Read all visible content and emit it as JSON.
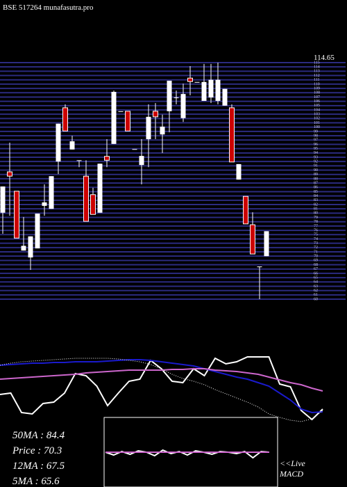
{
  "chart_data": [
    {
      "type": "candlestick",
      "title": "BSE 517264 munafasutra.pro",
      "annotation": {
        "value": 114.65,
        "label": "114.65"
      },
      "up_color": "#ffffff",
      "down_color": "#cc0000",
      "grid_color": "#2b2b80",
      "ylim": [
        60,
        115
      ],
      "yticks": [
        60,
        61,
        62,
        63,
        64,
        65,
        66,
        67,
        68,
        69,
        70,
        71,
        72,
        73,
        74,
        75,
        76,
        77,
        78,
        79,
        80,
        81,
        82,
        83,
        84,
        85,
        86,
        87,
        88,
        89,
        90,
        91,
        92,
        93,
        94,
        95,
        96,
        97,
        98,
        99,
        100,
        101,
        102,
        103,
        104,
        105,
        106,
        107,
        108,
        109,
        110,
        111,
        112,
        113,
        114,
        115
      ],
      "open": [
        80.1,
        89.6,
        85.1,
        71.3,
        69.7,
        71.8,
        81.7,
        81.0,
        92.0,
        104.5,
        94.8,
        92.3,
        88.6,
        84.3,
        80.1,
        93.2,
        96.1,
        103.7,
        103.7,
        94.9,
        91.2,
        97.2,
        103.7,
        98.3,
        103.7,
        106.9,
        102.1,
        111.4,
        110.5,
        106.1,
        106.9,
        106.1,
        105.0,
        104.5,
        87.8,
        83.9,
        77.3,
        67.6,
        70.0
      ],
      "high": [
        86.2,
        96.4,
        85.1,
        79.1,
        74.6,
        79.9,
        86.7,
        88.6,
        100.8,
        105.3,
        98.0,
        92.3,
        92.3,
        85.9,
        91.5,
        97.2,
        108.5,
        103.7,
        103.7,
        94.9,
        97.2,
        105.3,
        105.6,
        102.9,
        110.8,
        108.5,
        110.1,
        114.2,
        110.5,
        114.7,
        114.7,
        115.0,
        108.9,
        105.3,
        91.4,
        83.9,
        80.2,
        67.6,
        75.8
      ],
      "low": [
        75.2,
        79.4,
        74.2,
        71.3,
        66.8,
        71.8,
        79.4,
        81.0,
        89.1,
        99.1,
        94.8,
        90.7,
        78.1,
        79.7,
        80.1,
        90.7,
        96.1,
        103.7,
        99.1,
        94.9,
        86.7,
        90.7,
        97.2,
        94.0,
        98.8,
        105.3,
        101.2,
        107.4,
        110.5,
        106.1,
        105.6,
        105.3,
        105.0,
        91.9,
        87.8,
        77.5,
        70.5,
        60.0,
        70.0
      ],
      "close": [
        86.2,
        88.6,
        74.2,
        72.4,
        74.6,
        79.9,
        82.5,
        88.6,
        100.8,
        99.1,
        96.7,
        92.3,
        78.1,
        79.7,
        91.5,
        92.3,
        108.2,
        103.7,
        99.1,
        94.9,
        93.3,
        102.4,
        102.4,
        100.1,
        110.8,
        106.9,
        107.7,
        110.6,
        110.5,
        110.5,
        111.0,
        111.0,
        108.9,
        91.9,
        91.4,
        77.5,
        70.5,
        67.6,
        75.8
      ]
    },
    {
      "type": "line",
      "ylim": [
        0,
        100
      ],
      "stats": [
        "50MA : 84.4",
        "Price  : 70.3",
        "12MA : 67.5",
        "5MA : 65.6"
      ],
      "series": [
        {
          "color": "#ffffff",
          "style": "solid",
          "values": [
            43,
            45,
            17,
            15,
            30,
            32,
            45,
            73,
            70,
            55,
            27,
            45,
            62,
            65,
            92,
            80,
            62,
            60,
            80,
            70,
            95,
            87,
            90,
            97,
            97,
            97,
            58,
            54,
            20,
            7,
            22
          ]
        },
        {
          "color": "#1a1acc",
          "style": "solid",
          "values": [
            85,
            86,
            87,
            88,
            88,
            89,
            89,
            90,
            90,
            90,
            91,
            92,
            93,
            93,
            92,
            90,
            88,
            86,
            84,
            80,
            76,
            72,
            68,
            65,
            60,
            55,
            45,
            35,
            22,
            17,
            18
          ]
        },
        {
          "color": "#cc66cc",
          "style": "solid",
          "values": [
            65,
            66,
            67,
            68,
            69,
            70,
            71,
            72,
            74,
            75,
            76,
            77,
            78,
            78,
            78,
            78,
            79,
            79,
            80,
            80,
            78,
            77,
            76,
            74,
            72,
            68,
            64,
            60,
            57,
            52,
            48
          ]
        },
        {
          "color": "#ffffff",
          "style": "dotted",
          "values": [
            85,
            88,
            90,
            91,
            92,
            93,
            94,
            95,
            95,
            95,
            95,
            94,
            92,
            90,
            86,
            80,
            72,
            66,
            62,
            57,
            50,
            44,
            38,
            32,
            25,
            15,
            10,
            6,
            4,
            8,
            20
          ]
        }
      ]
    },
    {
      "type": "line",
      "ylim": [
        -1,
        1
      ],
      "label": "<<Live",
      "sublabel": "MACD",
      "series": [
        {
          "color": "#ffffff",
          "style": "solid",
          "values": [
            0,
            -0.08,
            0.02,
            -0.06,
            0.04,
            0,
            -0.1,
            0.06,
            -0.04,
            0.02,
            -0.08,
            0.04,
            0,
            -0.06,
            0.02,
            0,
            -0.04,
            0.02,
            -0.16,
            0.02,
            0
          ]
        },
        {
          "color": "#cc66cc",
          "style": "solid",
          "values": [
            0,
            0,
            0,
            0,
            0,
            0,
            0,
            0,
            0,
            0,
            0,
            0,
            0,
            0,
            0,
            0,
            0,
            0,
            0,
            0,
            0
          ]
        }
      ]
    }
  ]
}
